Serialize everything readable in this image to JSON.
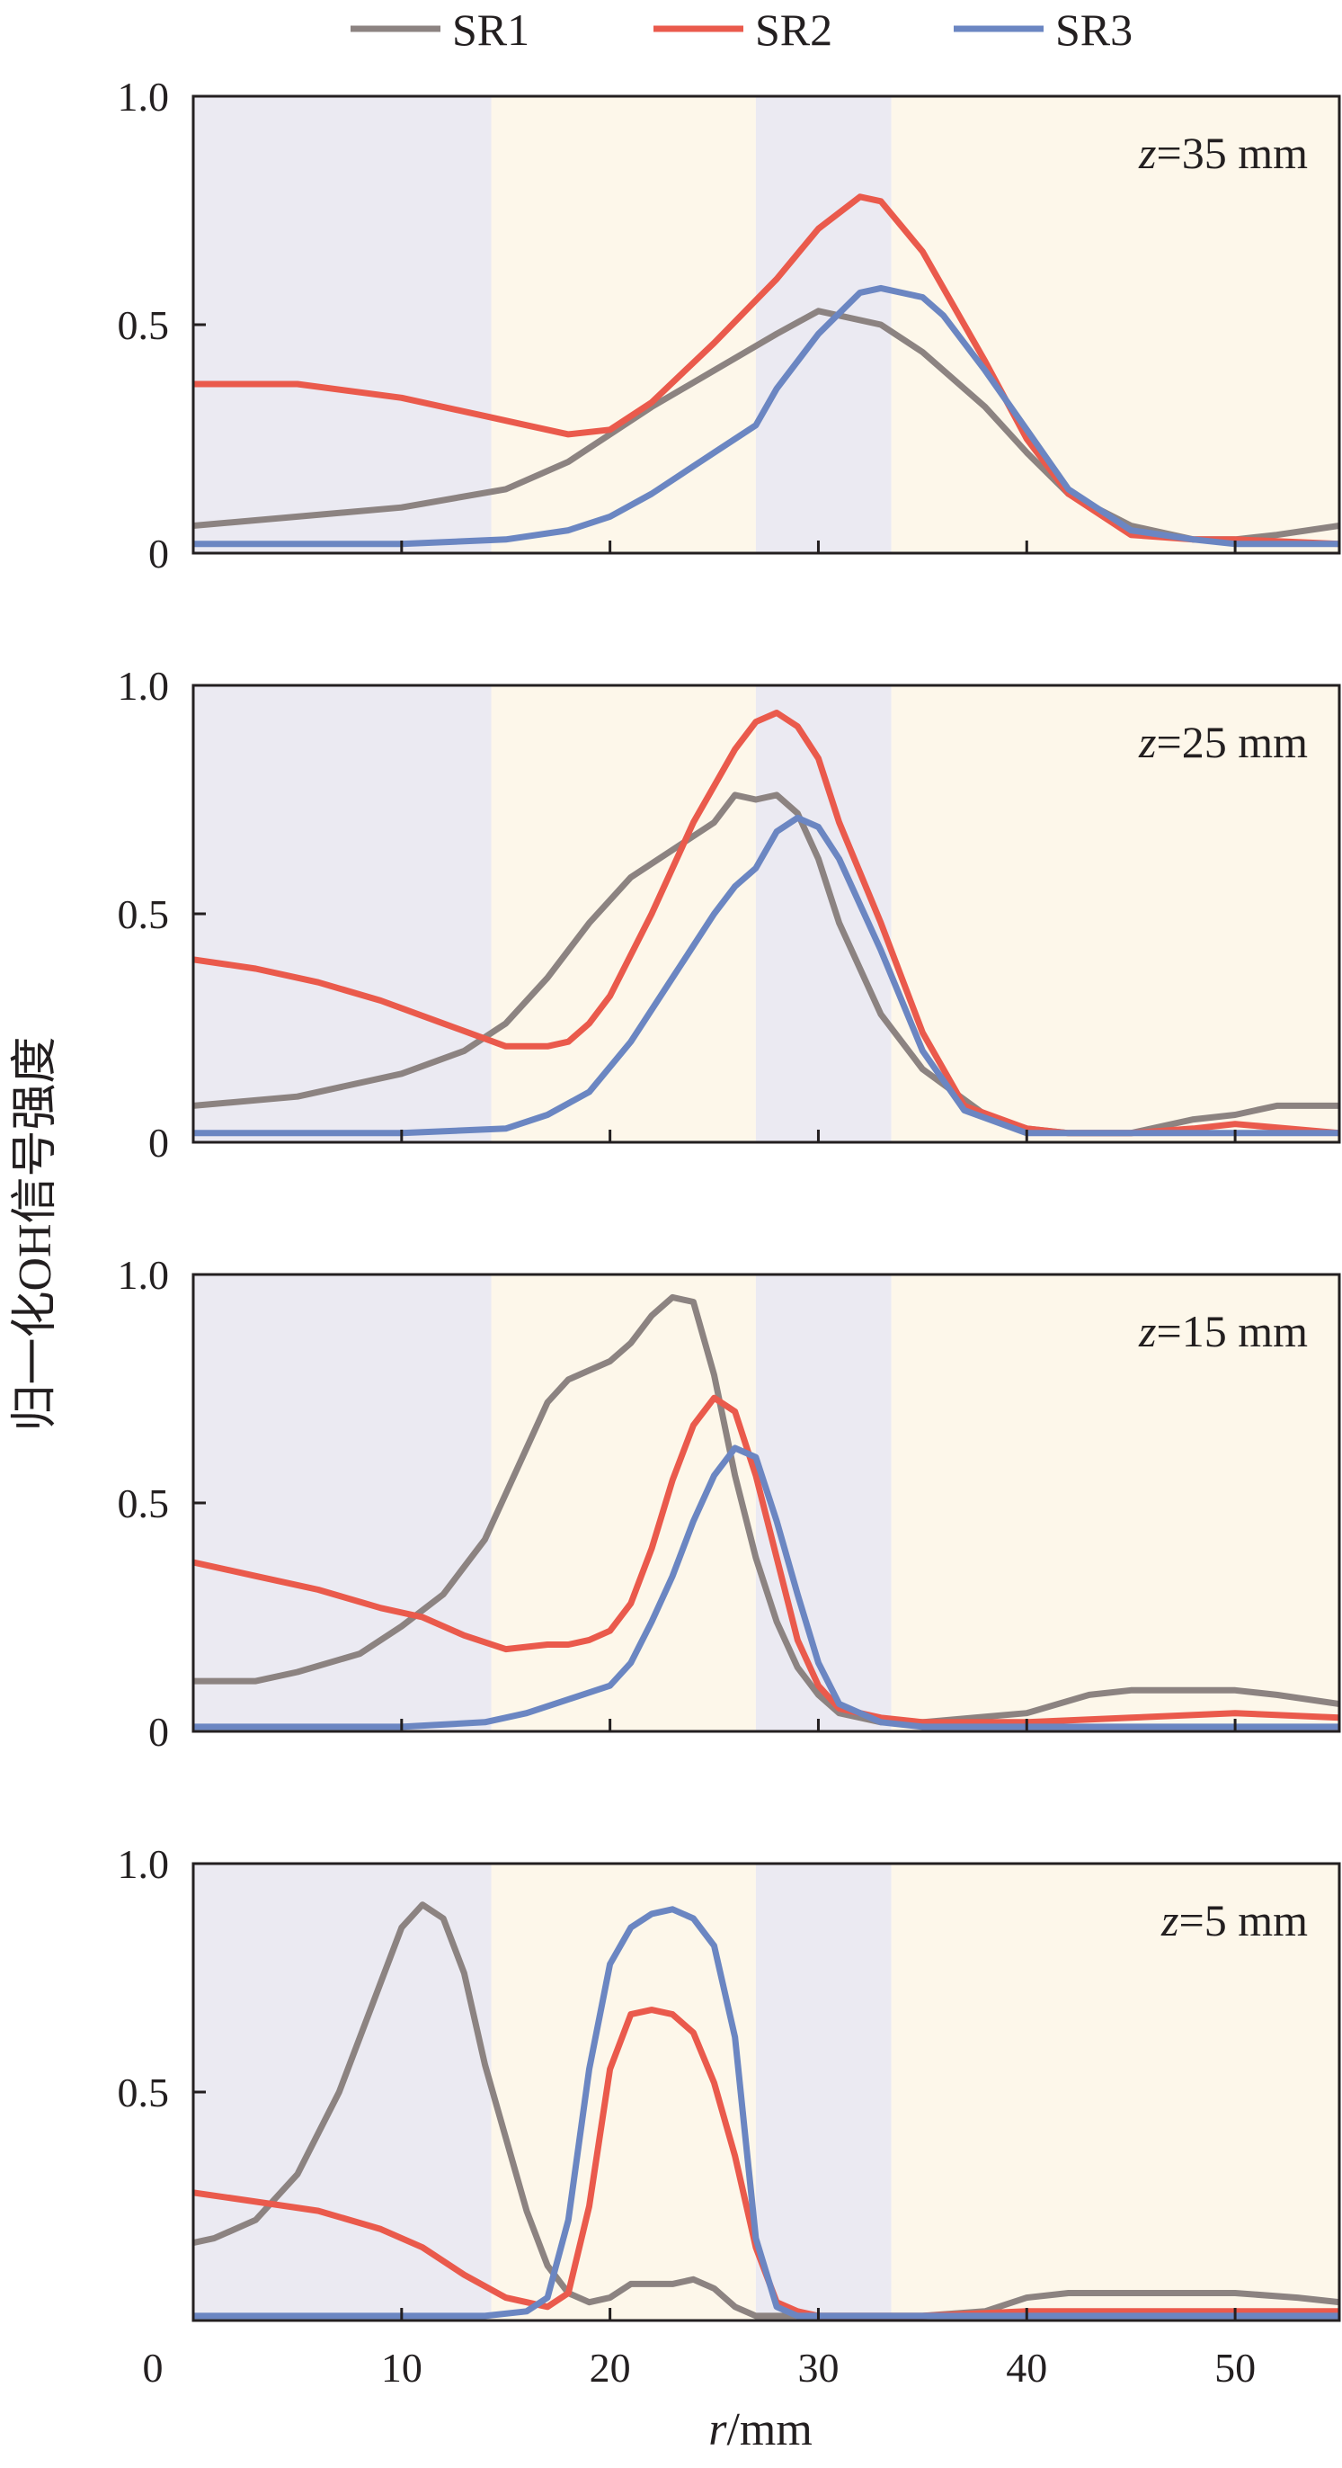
{
  "colors": {
    "SR1": "#8c8381",
    "SR2": "#ea5a4c",
    "SR3": "#6b86c2",
    "band_blue": "#ebeaf2",
    "band_cream": "#fdf7ea"
  },
  "chart_data": {
    "type": "line",
    "legend": {
      "placement": "top-center",
      "entries": [
        "SR1",
        "SR2",
        "SR3"
      ]
    },
    "xlabel_var": "r",
    "xlabel_unit": "/mm",
    "ylabel": "归一化OH信号强度",
    "xlim": [
      0,
      55
    ],
    "ylim": [
      0,
      1.0
    ],
    "x_ticks": [
      "0",
      "10",
      "20",
      "30",
      "40",
      "50"
    ],
    "x_tick_values": [
      0,
      10,
      20,
      30,
      40,
      50
    ],
    "y_ticks_full": [
      "0",
      "0.5",
      "1.0"
    ],
    "y_ticks_bottom": [
      "0.5",
      "1.0"
    ],
    "bands": [
      {
        "from": 0,
        "to": 14.3,
        "tone": "blue"
      },
      {
        "from": 14.3,
        "to": 27.0,
        "tone": "cream"
      },
      {
        "from": 27.0,
        "to": 33.5,
        "tone": "blue"
      },
      {
        "from": 33.5,
        "to": 55,
        "tone": "cream"
      }
    ],
    "panels": [
      {
        "z_label": "=35 mm",
        "series": [
          {
            "name": "SR1",
            "x": [
              0,
              5,
              10,
              15,
              18,
              20,
              22,
              25,
              28,
              30,
              33,
              35,
              38,
              40,
              42,
              45,
              48,
              50,
              52,
              55
            ],
            "y": [
              0.06,
              0.08,
              0.1,
              0.14,
              0.2,
              0.26,
              0.32,
              0.4,
              0.48,
              0.53,
              0.5,
              0.44,
              0.32,
              0.22,
              0.13,
              0.06,
              0.03,
              0.03,
              0.04,
              0.06
            ]
          },
          {
            "name": "SR2",
            "x": [
              0,
              5,
              10,
              14,
              16,
              18,
              20,
              22,
              25,
              28,
              30,
              32,
              33,
              35,
              38,
              40,
              42,
              45,
              48,
              50,
              55
            ],
            "y": [
              0.37,
              0.37,
              0.34,
              0.3,
              0.28,
              0.26,
              0.27,
              0.33,
              0.46,
              0.6,
              0.71,
              0.78,
              0.77,
              0.66,
              0.42,
              0.25,
              0.13,
              0.04,
              0.03,
              0.03,
              0.02
            ]
          },
          {
            "name": "SR3",
            "x": [
              0,
              5,
              10,
              15,
              18,
              20,
              22,
              25,
              27,
              28,
              30,
              32,
              33,
              35,
              36,
              38,
              40,
              42,
              45,
              48,
              50,
              55
            ],
            "y": [
              0.02,
              0.02,
              0.02,
              0.03,
              0.05,
              0.08,
              0.13,
              0.22,
              0.28,
              0.36,
              0.48,
              0.57,
              0.58,
              0.56,
              0.52,
              0.4,
              0.27,
              0.14,
              0.05,
              0.03,
              0.02,
              0.02
            ]
          }
        ]
      },
      {
        "z_label": "=25 mm",
        "series": [
          {
            "name": "SR1",
            "x": [
              0,
              5,
              10,
              13,
              15,
              17,
              19,
              21,
              23,
              25,
              26,
              27,
              28,
              29,
              30,
              31,
              33,
              35,
              38,
              40,
              42,
              45,
              48,
              50,
              52,
              55
            ],
            "y": [
              0.08,
              0.1,
              0.15,
              0.2,
              0.26,
              0.36,
              0.48,
              0.58,
              0.64,
              0.7,
              0.76,
              0.75,
              0.76,
              0.72,
              0.62,
              0.48,
              0.28,
              0.16,
              0.06,
              0.03,
              0.02,
              0.02,
              0.05,
              0.06,
              0.08,
              0.08
            ]
          },
          {
            "name": "SR2",
            "x": [
              0,
              3,
              6,
              9,
              12,
              15,
              17,
              18,
              19,
              20,
              22,
              24,
              26,
              27,
              28,
              29,
              30,
              31,
              33,
              35,
              37,
              40,
              42,
              45,
              48,
              50,
              55
            ],
            "y": [
              0.4,
              0.38,
              0.35,
              0.31,
              0.26,
              0.21,
              0.21,
              0.22,
              0.26,
              0.32,
              0.5,
              0.7,
              0.86,
              0.92,
              0.94,
              0.91,
              0.84,
              0.7,
              0.48,
              0.24,
              0.08,
              0.03,
              0.02,
              0.02,
              0.03,
              0.04,
              0.02
            ]
          },
          {
            "name": "SR3",
            "x": [
              0,
              5,
              10,
              15,
              17,
              19,
              21,
              23,
              25,
              26,
              27,
              28,
              29,
              30,
              31,
              33,
              35,
              37,
              40,
              45,
              50,
              55
            ],
            "y": [
              0.02,
              0.02,
              0.02,
              0.03,
              0.06,
              0.11,
              0.22,
              0.36,
              0.5,
              0.56,
              0.6,
              0.68,
              0.71,
              0.69,
              0.62,
              0.42,
              0.2,
              0.07,
              0.02,
              0.02,
              0.02,
              0.02
            ]
          }
        ]
      },
      {
        "z_label": "=15 mm",
        "series": [
          {
            "name": "SR1",
            "x": [
              0,
              3,
              5,
              8,
              10,
              12,
              14,
              15,
              16,
              17,
              18,
              20,
              21,
              22,
              23,
              24,
              25,
              26,
              27,
              28,
              29,
              30,
              31,
              33,
              35,
              40,
              43,
              45,
              48,
              50,
              52,
              55
            ],
            "y": [
              0.11,
              0.11,
              0.13,
              0.17,
              0.23,
              0.3,
              0.42,
              0.52,
              0.62,
              0.72,
              0.77,
              0.81,
              0.85,
              0.91,
              0.95,
              0.94,
              0.78,
              0.56,
              0.38,
              0.24,
              0.14,
              0.08,
              0.04,
              0.02,
              0.02,
              0.04,
              0.08,
              0.09,
              0.09,
              0.09,
              0.08,
              0.06
            ]
          },
          {
            "name": "SR2",
            "x": [
              0,
              3,
              6,
              9,
              11,
              13,
              15,
              17,
              18,
              19,
              20,
              21,
              22,
              23,
              24,
              25,
              26,
              27,
              28,
              29,
              30,
              31,
              33,
              35,
              40,
              45,
              50,
              55
            ],
            "y": [
              0.37,
              0.34,
              0.31,
              0.27,
              0.25,
              0.21,
              0.18,
              0.19,
              0.19,
              0.2,
              0.22,
              0.28,
              0.4,
              0.55,
              0.67,
              0.73,
              0.7,
              0.56,
              0.38,
              0.2,
              0.1,
              0.05,
              0.03,
              0.02,
              0.02,
              0.03,
              0.04,
              0.03
            ]
          },
          {
            "name": "SR3",
            "x": [
              0,
              5,
              10,
              14,
              16,
              18,
              20,
              21,
              22,
              23,
              24,
              25,
              26,
              27,
              28,
              29,
              30,
              31,
              33,
              35,
              40,
              45,
              50,
              55
            ],
            "y": [
              0.01,
              0.01,
              0.01,
              0.02,
              0.04,
              0.07,
              0.1,
              0.15,
              0.24,
              0.34,
              0.46,
              0.56,
              0.62,
              0.6,
              0.46,
              0.3,
              0.15,
              0.06,
              0.02,
              0.01,
              0.01,
              0.01,
              0.01,
              0.01
            ]
          }
        ]
      },
      {
        "z_label": "=5 mm",
        "series": [
          {
            "name": "SR1",
            "x": [
              0,
              1,
              3,
              5,
              7,
              9,
              10,
              11,
              12,
              13,
              14,
              15,
              16,
              17,
              18,
              19,
              20,
              21,
              22,
              23,
              24,
              25,
              26,
              27,
              28,
              30,
              35,
              38,
              40,
              42,
              45,
              48,
              50,
              53,
              55
            ],
            "y": [
              0.17,
              0.18,
              0.22,
              0.32,
              0.5,
              0.74,
              0.86,
              0.91,
              0.88,
              0.76,
              0.56,
              0.4,
              0.24,
              0.12,
              0.06,
              0.04,
              0.05,
              0.08,
              0.08,
              0.08,
              0.09,
              0.07,
              0.03,
              0.01,
              0.01,
              0.01,
              0.01,
              0.02,
              0.05,
              0.06,
              0.06,
              0.06,
              0.06,
              0.05,
              0.04
            ]
          },
          {
            "name": "SR2",
            "x": [
              0,
              3,
              6,
              9,
              11,
              13,
              15,
              17,
              18,
              19,
              20,
              21,
              22,
              23,
              24,
              25,
              26,
              27,
              28,
              29,
              30,
              35,
              40,
              45,
              50,
              55
            ],
            "y": [
              0.28,
              0.26,
              0.24,
              0.2,
              0.16,
              0.1,
              0.05,
              0.03,
              0.06,
              0.25,
              0.55,
              0.67,
              0.68,
              0.67,
              0.63,
              0.52,
              0.36,
              0.16,
              0.04,
              0.02,
              0.01,
              0.01,
              0.02,
              0.02,
              0.02,
              0.02
            ]
          },
          {
            "name": "SR3",
            "x": [
              0,
              5,
              10,
              14,
              16,
              17,
              18,
              19,
              20,
              21,
              22,
              23,
              24,
              25,
              26,
              26.5,
              27,
              28,
              29,
              30,
              35,
              40,
              45,
              50,
              55
            ],
            "y": [
              0.01,
              0.01,
              0.01,
              0.01,
              0.02,
              0.05,
              0.22,
              0.55,
              0.78,
              0.86,
              0.89,
              0.9,
              0.88,
              0.82,
              0.62,
              0.4,
              0.18,
              0.03,
              0.01,
              0.01,
              0.01,
              0.01,
              0.01,
              0.01,
              0.01
            ]
          }
        ]
      }
    ]
  }
}
